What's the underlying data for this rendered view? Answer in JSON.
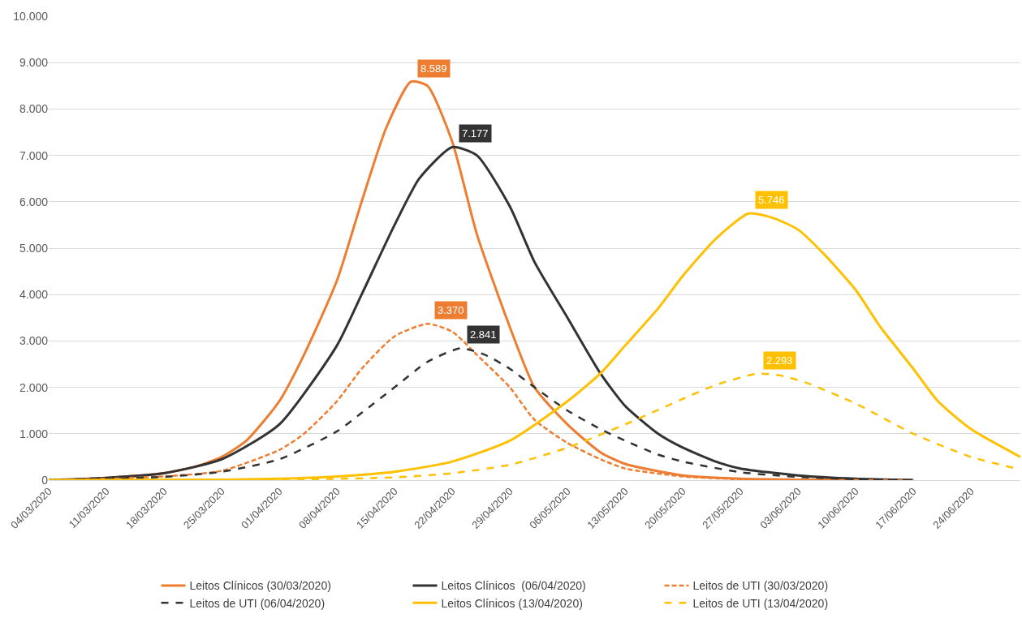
{
  "chart_data": {
    "type": "line",
    "xlim": [
      "2020-03-04",
      "2020-06-30"
    ],
    "xticks": [
      {
        "value": "2020-03-04",
        "label": "04/03/2020"
      },
      {
        "value": "2020-03-11",
        "label": "11/03/2020"
      },
      {
        "value": "2020-03-18",
        "label": "18/03/2020"
      },
      {
        "value": "2020-03-25",
        "label": "25/03/2020"
      },
      {
        "value": "2020-04-01",
        "label": "01/04/2020"
      },
      {
        "value": "2020-04-08",
        "label": "08/04/2020"
      },
      {
        "value": "2020-04-15",
        "label": "15/04/2020"
      },
      {
        "value": "2020-04-22",
        "label": "22/04/2020"
      },
      {
        "value": "2020-04-29",
        "label": "29/04/2020"
      },
      {
        "value": "2020-05-06",
        "label": "06/05/2020"
      },
      {
        "value": "2020-05-13",
        "label": "13/05/2020"
      },
      {
        "value": "2020-05-20",
        "label": "20/05/2020"
      },
      {
        "value": "2020-05-27",
        "label": "27/05/2020"
      },
      {
        "value": "2020-06-03",
        "label": "03/06/2020"
      },
      {
        "value": "2020-06-10",
        "label": "10/06/2020"
      },
      {
        "value": "2020-06-17",
        "label": "17/06/2020"
      },
      {
        "value": "2020-06-24",
        "label": "24/06/2020"
      }
    ],
    "ylim": [
      0,
      10000
    ],
    "yticks": [
      0,
      {
        "value": 1000,
        "label": "1.000"
      },
      {
        "value": 2000,
        "label": "2.000"
      },
      {
        "value": 3000,
        "label": "3.000"
      },
      {
        "value": 4000,
        "label": "4.000"
      },
      {
        "value": 5000,
        "label": "5.000"
      },
      {
        "value": 6000,
        "label": "6.000"
      },
      {
        "value": 7000,
        "label": "7.000"
      },
      {
        "value": 8000,
        "label": "8.000"
      },
      {
        "value": 9000,
        "label": "9.000"
      },
      {
        "value": 10000,
        "label": "10.000"
      }
    ],
    "grid": "y",
    "legend": "bottom",
    "marker": "none",
    "series": [
      {
        "name": "Leitos Clínicos (30/03/2020)",
        "color": "#ed7d31",
        "line_style": "solid",
        "x": [
          "2020-03-04",
          "2020-03-11",
          "2020-03-18",
          "2020-03-22",
          "2020-03-25",
          "2020-03-28",
          "2020-04-01",
          "2020-04-04",
          "2020-04-08",
          "2020-04-11",
          "2020-04-14",
          "2020-04-17",
          "2020-04-19",
          "2020-04-22",
          "2020-04-25",
          "2020-04-29",
          "2020-05-02",
          "2020-05-06",
          "2020-05-10",
          "2020-05-13",
          "2020-05-20",
          "2020-05-27",
          "2020-06-03",
          "2020-06-17"
        ],
        "values": [
          0,
          50,
          150,
          300,
          500,
          850,
          1700,
          2700,
          4300,
          6000,
          7600,
          8589,
          8500,
          7300,
          5300,
          3300,
          2000,
          1200,
          600,
          350,
          100,
          30,
          10,
          0
        ],
        "value_labels": [
          null,
          null,
          null,
          null,
          null,
          null,
          null,
          null,
          null,
          null,
          null,
          "8.589",
          null,
          null,
          null,
          null,
          null,
          null,
          null,
          null,
          null,
          null,
          null,
          null
        ]
      },
      {
        "name": "Leitos Clínicos  (06/04/2020)",
        "color": "#333333",
        "line_style": "solid",
        "x": [
          "2020-03-04",
          "2020-03-11",
          "2020-03-18",
          "2020-03-25",
          "2020-04-01",
          "2020-04-08",
          "2020-04-11",
          "2020-04-15",
          "2020-04-18",
          "2020-04-22",
          "2020-04-25",
          "2020-04-29",
          "2020-05-02",
          "2020-05-06",
          "2020-05-10",
          "2020-05-13",
          "2020-05-17",
          "2020-05-20",
          "2020-05-24",
          "2020-05-27",
          "2020-06-03",
          "2020-06-10",
          "2020-06-17"
        ],
        "values": [
          0,
          50,
          150,
          450,
          1200,
          2900,
          4000,
          5500,
          6500,
          7177,
          7000,
          5900,
          4700,
          3500,
          2300,
          1600,
          1000,
          700,
          400,
          250,
          100,
          30,
          0
        ],
        "value_labels": [
          null,
          null,
          null,
          null,
          null,
          null,
          null,
          null,
          null,
          "7.177",
          null,
          null,
          null,
          null,
          null,
          null,
          null,
          null,
          null,
          null,
          null,
          null,
          null
        ]
      },
      {
        "name": "Leitos de UTI (30/03/2020)",
        "color": "#ed7d31",
        "line_style": "dotted",
        "x": [
          "2020-03-04",
          "2020-03-11",
          "2020-03-18",
          "2020-03-25",
          "2020-04-01",
          "2020-04-04",
          "2020-04-08",
          "2020-04-11",
          "2020-04-15",
          "2020-04-19",
          "2020-04-22",
          "2020-04-25",
          "2020-04-29",
          "2020-05-02",
          "2020-05-06",
          "2020-05-10",
          "2020-05-13",
          "2020-05-20",
          "2020-05-27",
          "2020-06-17"
        ],
        "values": [
          0,
          30,
          80,
          200,
          650,
          1000,
          1700,
          2400,
          3100,
          3370,
          3200,
          2700,
          2000,
          1300,
          800,
          450,
          250,
          80,
          20,
          0
        ],
        "value_labels": [
          null,
          null,
          null,
          null,
          null,
          null,
          null,
          null,
          null,
          "3.370",
          null,
          null,
          null,
          null,
          null,
          null,
          null,
          null,
          null,
          null
        ]
      },
      {
        "name": "Leitos de UTI (06/04/2020)",
        "color": "#333333",
        "line_style": "dashed",
        "x": [
          "2020-03-04",
          "2020-03-11",
          "2020-03-18",
          "2020-03-25",
          "2020-04-01",
          "2020-04-08",
          "2020-04-11",
          "2020-04-15",
          "2020-04-19",
          "2020-04-23",
          "2020-04-26",
          "2020-04-29",
          "2020-05-02",
          "2020-05-06",
          "2020-05-10",
          "2020-05-13",
          "2020-05-17",
          "2020-05-20",
          "2020-05-27",
          "2020-06-03",
          "2020-06-10",
          "2020-06-17"
        ],
        "values": [
          0,
          30,
          70,
          180,
          450,
          1050,
          1450,
          2000,
          2550,
          2841,
          2700,
          2400,
          2000,
          1500,
          1100,
          850,
          550,
          400,
          170,
          70,
          20,
          0
        ],
        "value_labels": [
          null,
          null,
          null,
          null,
          null,
          null,
          null,
          null,
          null,
          "2.841",
          null,
          null,
          null,
          null,
          null,
          null,
          null,
          null,
          null,
          null,
          null,
          null
        ]
      },
      {
        "name": "Leitos Clínicos (13/04/2020)",
        "color": "#ffc000",
        "line_style": "solid",
        "x": [
          "2020-03-04",
          "2020-03-25",
          "2020-04-01",
          "2020-04-08",
          "2020-04-15",
          "2020-04-22",
          "2020-04-29",
          "2020-05-06",
          "2020-05-10",
          "2020-05-13",
          "2020-05-17",
          "2020-05-20",
          "2020-05-24",
          "2020-05-28",
          "2020-05-31",
          "2020-06-03",
          "2020-06-06",
          "2020-06-10",
          "2020-06-13",
          "2020-06-17",
          "2020-06-20",
          "2020-06-24",
          "2020-06-30"
        ],
        "values": [
          0,
          10,
          30,
          80,
          180,
          400,
          850,
          1700,
          2300,
          2900,
          3700,
          4400,
          5200,
          5746,
          5650,
          5400,
          4900,
          4100,
          3300,
          2400,
          1700,
          1100,
          500
        ],
        "value_labels": [
          null,
          null,
          null,
          null,
          null,
          null,
          null,
          null,
          null,
          null,
          null,
          null,
          null,
          "5.746",
          null,
          null,
          null,
          null,
          null,
          null,
          null,
          null,
          null
        ]
      },
      {
        "name": "Leitos de UTI (13/04/2020)",
        "color": "#ffc000",
        "line_style": "dashed",
        "x": [
          "2020-03-04",
          "2020-04-01",
          "2020-04-15",
          "2020-04-22",
          "2020-04-29",
          "2020-05-06",
          "2020-05-13",
          "2020-05-20",
          "2020-05-24",
          "2020-05-29",
          "2020-06-01",
          "2020-06-04",
          "2020-06-10",
          "2020-06-17",
          "2020-06-24",
          "2020-06-30"
        ],
        "values": [
          0,
          10,
          60,
          150,
          330,
          700,
          1200,
          1750,
          2050,
          2293,
          2250,
          2100,
          1650,
          1000,
          500,
          230
        ],
        "value_labels": [
          null,
          null,
          null,
          null,
          null,
          null,
          null,
          null,
          null,
          "2.293",
          null,
          null,
          null,
          null,
          null,
          null
        ]
      }
    ]
  }
}
